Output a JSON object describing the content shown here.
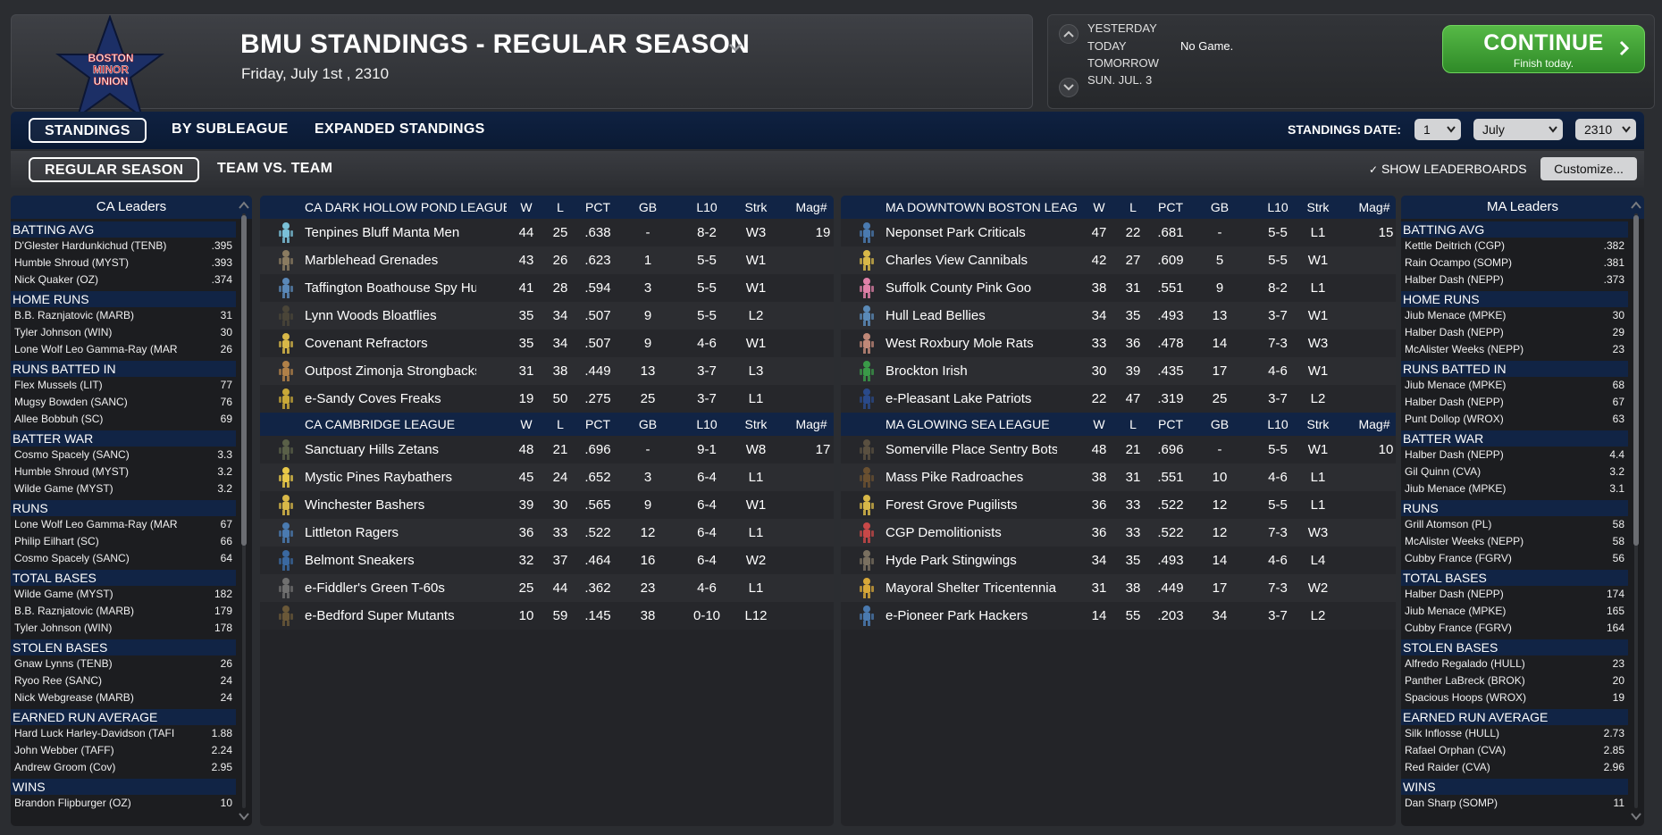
{
  "header": {
    "title": "BMU STANDINGS - REGULAR SEASON",
    "date": "Friday, July 1st , 2310",
    "logo_text": [
      "BOSTON",
      "MINOR",
      "UNION"
    ]
  },
  "schedule": {
    "yesterday": "YESTERDAY",
    "today": "TODAY",
    "tomorrow": "TOMORROW",
    "next": "SUN. JUL. 3",
    "today_result": "No Game.",
    "continue_label": "CONTINUE",
    "continue_sub": "Finish today."
  },
  "tabs": {
    "primary": [
      "STANDINGS",
      "BY SUBLEAGUE",
      "EXPANDED STANDINGS"
    ],
    "secondary": [
      "REGULAR SEASON",
      "TEAM VS. TEAM"
    ],
    "standings_date_label": "STANDINGS DATE:",
    "date_day": "1",
    "date_month": "July",
    "date_year": "2310",
    "show_leaderboards": "SHOW LEADERBOARDS",
    "customize": "Customize..."
  },
  "colors": {
    "navy": "#112445",
    "continue_green": "#3fa234",
    "panel_dark": "#1c1d20"
  },
  "ca_leaders": {
    "title": "CA Leaders",
    "categories": [
      {
        "name": "BATTING AVG",
        "rows": [
          [
            "D'Glester Hardunkichud (TENB)",
            ".395"
          ],
          [
            "Humble Shroud (MYST)",
            ".393"
          ],
          [
            "Nick Quaker (OZ)",
            ".374"
          ]
        ]
      },
      {
        "name": "HOME RUNS",
        "rows": [
          [
            "B.B. Raznjatovic (MARB)",
            "31"
          ],
          [
            "Tyler Johnson (WIN)",
            "30"
          ],
          [
            "Lone Wolf Leo Gamma-Ray (MAR",
            "26"
          ]
        ]
      },
      {
        "name": "RUNS BATTED IN",
        "rows": [
          [
            "Flex Mussels (LIT)",
            "77"
          ],
          [
            "Mugsy Bowden (SANC)",
            "76"
          ],
          [
            "Allee Bobbuh (SC)",
            "69"
          ]
        ]
      },
      {
        "name": "BATTER WAR",
        "rows": [
          [
            "Cosmo Spacely (SANC)",
            "3.3"
          ],
          [
            "Humble Shroud (MYST)",
            "3.2"
          ],
          [
            "Wilde Game (MYST)",
            "3.2"
          ]
        ]
      },
      {
        "name": "RUNS",
        "rows": [
          [
            "Lone Wolf Leo Gamma-Ray (MAR",
            "67"
          ],
          [
            "Philip Eilhart (SC)",
            "66"
          ],
          [
            "Cosmo Spacely (SANC)",
            "64"
          ]
        ]
      },
      {
        "name": "TOTAL BASES",
        "rows": [
          [
            "Wilde Game (MYST)",
            "182"
          ],
          [
            "B.B. Raznjatovic (MARB)",
            "179"
          ],
          [
            "Tyler Johnson (WIN)",
            "178"
          ]
        ]
      },
      {
        "name": "STOLEN BASES",
        "rows": [
          [
            "Gnaw Lynns (TENB)",
            "26"
          ],
          [
            "Ryoo Ree (SANC)",
            "24"
          ],
          [
            "Nick Webgrease (MARB)",
            "24"
          ]
        ]
      },
      {
        "name": "EARNED RUN AVERAGE",
        "rows": [
          [
            "Hard Luck Harley-Davidson (TAFI",
            "1.88"
          ],
          [
            "John Webber (TAFF)",
            "2.24"
          ],
          [
            "Andrew Groom (Cov)",
            "2.95"
          ]
        ]
      },
      {
        "name": "WINS",
        "rows": [
          [
            "Brandon Flipburger (OZ)",
            "10"
          ]
        ]
      }
    ]
  },
  "ma_leaders": {
    "title": "MA Leaders",
    "categories": [
      {
        "name": "BATTING AVG",
        "rows": [
          [
            "Kettle Deitrich (CGP)",
            ".382"
          ],
          [
            "Rain Ocampo (SOMP)",
            ".381"
          ],
          [
            "Halber Dash (NEPP)",
            ".373"
          ]
        ]
      },
      {
        "name": "HOME RUNS",
        "rows": [
          [
            "Jiub Menace (MPKE)",
            "30"
          ],
          [
            "Halber Dash (NEPP)",
            "29"
          ],
          [
            "McAlister Weeks (NEPP)",
            "23"
          ]
        ]
      },
      {
        "name": "RUNS BATTED IN",
        "rows": [
          [
            "Jiub Menace (MPKE)",
            "68"
          ],
          [
            "Halber Dash (NEPP)",
            "67"
          ],
          [
            "Punt Dollop (WROX)",
            "63"
          ]
        ]
      },
      {
        "name": "BATTER WAR",
        "rows": [
          [
            "Halber Dash (NEPP)",
            "4.4"
          ],
          [
            "Gil Quinn (CVA)",
            "3.2"
          ],
          [
            "Jiub Menace (MPKE)",
            "3.1"
          ]
        ]
      },
      {
        "name": "RUNS",
        "rows": [
          [
            "Grill Atomson (PL)",
            "58"
          ],
          [
            "McAlister Weeks (NEPP)",
            "58"
          ],
          [
            "Cubby France (FGRV)",
            "56"
          ]
        ]
      },
      {
        "name": "TOTAL BASES",
        "rows": [
          [
            "Halber Dash (NEPP)",
            "174"
          ],
          [
            "Jiub Menace (MPKE)",
            "165"
          ],
          [
            "Cubby France (FGRV)",
            "164"
          ]
        ]
      },
      {
        "name": "STOLEN BASES",
        "rows": [
          [
            "Alfredo Regalado (HULL)",
            "23"
          ],
          [
            "Panther LaBreck (BROK)",
            "20"
          ],
          [
            "Spacious Hoops (WROX)",
            "19"
          ]
        ]
      },
      {
        "name": "EARNED RUN AVERAGE",
        "rows": [
          [
            "Silk Inflosse (HULL)",
            "2.73"
          ],
          [
            "Rafael Orphan (CVA)",
            "2.85"
          ],
          [
            "Red Raider (CVA)",
            "2.96"
          ]
        ]
      },
      {
        "name": "WINS",
        "rows": [
          [
            "Dan Sharp (SOMP)",
            "11"
          ]
        ]
      }
    ]
  },
  "columns": [
    "W",
    "L",
    "PCT",
    "GB",
    "L10",
    "Strk",
    "Mag#"
  ],
  "standings": {
    "ca": [
      {
        "league": "CA DARK HOLLOW POND LEAGUE",
        "teams": [
          {
            "name": "Tenpines Bluff Manta Men",
            "w": "44",
            "l": "25",
            "pct": ".638",
            "gb": "-",
            "l10": "8-2",
            "strk": "W3",
            "mag": "19",
            "icon": "#7ac0d8"
          },
          {
            "name": "Marblehead Grenades",
            "w": "43",
            "l": "26",
            "pct": ".623",
            "gb": "1",
            "l10": "5-5",
            "strk": "W1",
            "mag": "",
            "icon": "#8a7b60"
          },
          {
            "name": "Taffington Boathouse Spy Hunters",
            "w": "41",
            "l": "28",
            "pct": ".594",
            "gb": "3",
            "l10": "5-5",
            "strk": "W1",
            "mag": "",
            "icon": "#5a88b8"
          },
          {
            "name": "Lynn Woods Bloatflies",
            "w": "35",
            "l": "34",
            "pct": ".507",
            "gb": "9",
            "l10": "5-5",
            "strk": "L2",
            "mag": "",
            "icon": "#4a4538"
          },
          {
            "name": "Covenant Refractors",
            "w": "35",
            "l": "34",
            "pct": ".507",
            "gb": "9",
            "l10": "4-6",
            "strk": "W1",
            "mag": "",
            "icon": "#d8b848"
          },
          {
            "name": "Outpost Zimonja Strongbacks",
            "w": "31",
            "l": "38",
            "pct": ".449",
            "gb": "13",
            "l10": "3-7",
            "strk": "L3",
            "mag": "",
            "icon": "#b08048"
          },
          {
            "name": "e-Sandy Coves Freaks",
            "w": "19",
            "l": "50",
            "pct": ".275",
            "gb": "25",
            "l10": "3-7",
            "strk": "L1",
            "mag": "",
            "icon": "#c8a838"
          }
        ]
      },
      {
        "league": "CA CAMBRIDGE LEAGUE",
        "teams": [
          {
            "name": "Sanctuary Hills Zetans",
            "w": "48",
            "l": "21",
            "pct": ".696",
            "gb": "-",
            "l10": "9-1",
            "strk": "W8",
            "mag": "17",
            "icon": "#5a6048"
          },
          {
            "name": "Mystic Pines Raybathers",
            "w": "45",
            "l": "24",
            "pct": ".652",
            "gb": "3",
            "l10": "6-4",
            "strk": "L1",
            "mag": "",
            "icon": "#e8c848"
          },
          {
            "name": "Winchester Bashers",
            "w": "39",
            "l": "30",
            "pct": ".565",
            "gb": "9",
            "l10": "6-4",
            "strk": "W1",
            "mag": "",
            "icon": "#d8b848"
          },
          {
            "name": "Littleton Ragers",
            "w": "36",
            "l": "33",
            "pct": ".522",
            "gb": "12",
            "l10": "6-4",
            "strk": "L1",
            "mag": "",
            "icon": "#4a7ab0"
          },
          {
            "name": "Belmont Sneakers",
            "w": "32",
            "l": "37",
            "pct": ".464",
            "gb": "16",
            "l10": "6-4",
            "strk": "W2",
            "mag": "",
            "icon": "#3a68a0"
          },
          {
            "name": "e-Fiddler's Green T-60s",
            "w": "25",
            "l": "44",
            "pct": ".362",
            "gb": "23",
            "l10": "4-6",
            "strk": "L1",
            "mag": "",
            "icon": "#707070"
          },
          {
            "name": "e-Bedford Super Mutants",
            "w": "10",
            "l": "59",
            "pct": ".145",
            "gb": "38",
            "l10": "0-10",
            "strk": "L12",
            "mag": "",
            "icon": "#6a5838"
          }
        ]
      }
    ],
    "ma": [
      {
        "league": "MA DOWNTOWN BOSTON LEAGUE",
        "teams": [
          {
            "name": "Neponset Park Criticals",
            "w": "47",
            "l": "22",
            "pct": ".681",
            "gb": "-",
            "l10": "5-5",
            "strk": "L1",
            "mag": "15",
            "icon": "#4a7ab0"
          },
          {
            "name": "Charles View Cannibals",
            "w": "42",
            "l": "27",
            "pct": ".609",
            "gb": "5",
            "l10": "5-5",
            "strk": "W1",
            "mag": "",
            "icon": "#d8b848"
          },
          {
            "name": "Suffolk County Pink Goo",
            "w": "38",
            "l": "31",
            "pct": ".551",
            "gb": "9",
            "l10": "8-2",
            "strk": "L1",
            "mag": "",
            "icon": "#e080a8"
          },
          {
            "name": "Hull Lead Bellies",
            "w": "34",
            "l": "35",
            "pct": ".493",
            "gb": "13",
            "l10": "3-7",
            "strk": "W1",
            "mag": "",
            "icon": "#5a8ab8"
          },
          {
            "name": "West Roxbury Mole Rats",
            "w": "33",
            "l": "36",
            "pct": ".478",
            "gb": "14",
            "l10": "7-3",
            "strk": "W3",
            "mag": "",
            "icon": "#c08878"
          },
          {
            "name": "Brockton Irish",
            "w": "30",
            "l": "39",
            "pct": ".435",
            "gb": "17",
            "l10": "4-6",
            "strk": "W1",
            "mag": "",
            "icon": "#3a9a48"
          },
          {
            "name": "e-Pleasant Lake Patriots",
            "w": "22",
            "l": "47",
            "pct": ".319",
            "gb": "25",
            "l10": "3-7",
            "strk": "L2",
            "mag": "",
            "icon": "#2a4a8a"
          }
        ]
      },
      {
        "league": "MA GLOWING SEA LEAGUE",
        "teams": [
          {
            "name": "Somerville Place Sentry Bots",
            "w": "48",
            "l": "21",
            "pct": ".696",
            "gb": "-",
            "l10": "5-5",
            "strk": "W1",
            "mag": "10",
            "icon": "#5a5040"
          },
          {
            "name": "Mass Pike Radroaches",
            "w": "38",
            "l": "31",
            "pct": ".551",
            "gb": "10",
            "l10": "4-6",
            "strk": "L1",
            "mag": "",
            "icon": "#6a5030"
          },
          {
            "name": "Forest Grove Pugilists",
            "w": "36",
            "l": "33",
            "pct": ".522",
            "gb": "12",
            "l10": "5-5",
            "strk": "L1",
            "mag": "",
            "icon": "#d8b848"
          },
          {
            "name": "CGP Demolitionists",
            "w": "36",
            "l": "33",
            "pct": ".522",
            "gb": "12",
            "l10": "7-3",
            "strk": "W3",
            "mag": "",
            "icon": "#c84848"
          },
          {
            "name": "Hyde Park Stingwings",
            "w": "34",
            "l": "35",
            "pct": ".493",
            "gb": "14",
            "l10": "4-6",
            "strk": "L4",
            "mag": "",
            "icon": "#7a7060"
          },
          {
            "name": "Mayoral Shelter Tricentennia",
            "w": "31",
            "l": "38",
            "pct": ".449",
            "gb": "17",
            "l10": "7-3",
            "strk": "W2",
            "mag": "",
            "icon": "#d8a838"
          },
          {
            "name": "e-Pioneer Park Hackers",
            "w": "14",
            "l": "55",
            "pct": ".203",
            "gb": "34",
            "l10": "3-7",
            "strk": "L2",
            "mag": "",
            "icon": "#4a7ab0"
          }
        ]
      }
    ]
  }
}
